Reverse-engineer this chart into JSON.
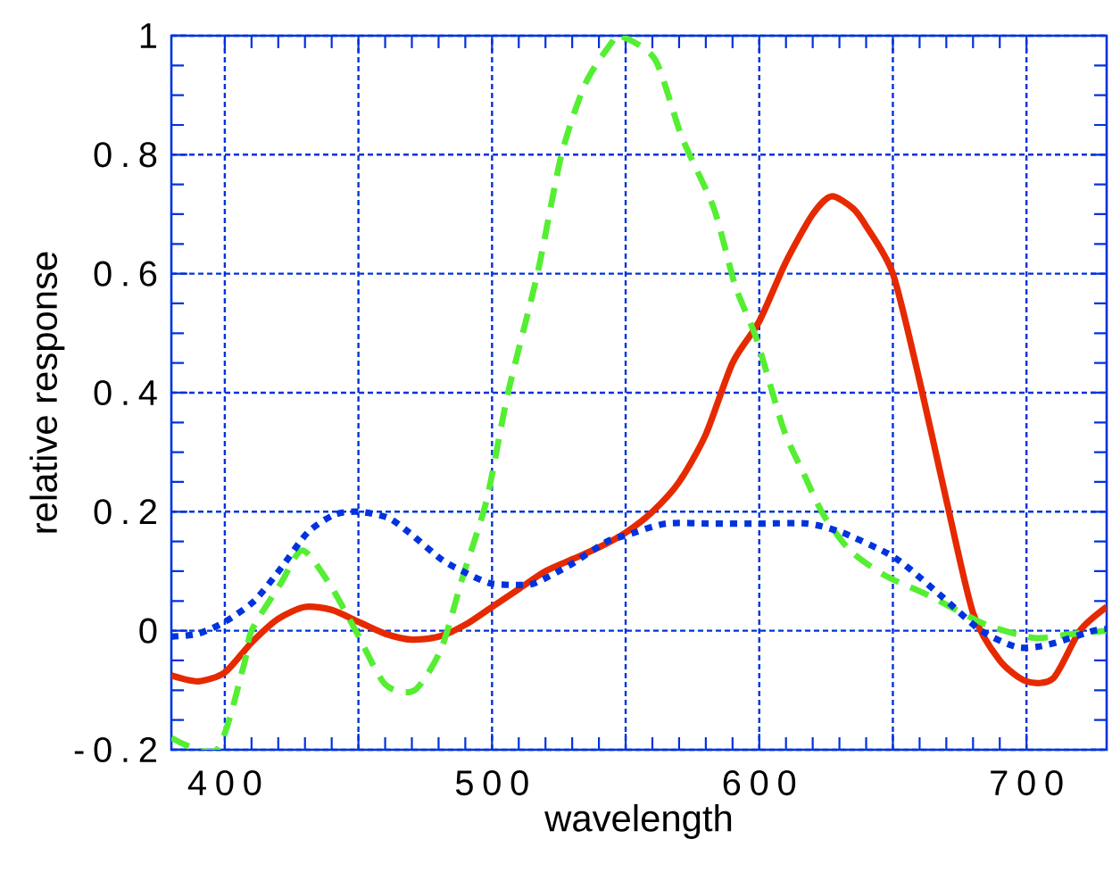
{
  "chart_data": {
    "type": "line",
    "xlabel": "wavelength",
    "ylabel": "relative response",
    "xlim": [
      380,
      730
    ],
    "ylim": [
      -0.2,
      1
    ],
    "xticks": [
      400,
      {
        "value": 450,
        "label": null
      },
      500,
      {
        "value": 550,
        "label": null
      },
      600,
      {
        "value": 650,
        "label": null
      },
      700
    ],
    "yticks": [
      -0.2,
      0,
      0.2,
      0.4,
      0.6,
      0.8,
      1
    ],
    "grid": true,
    "marker": "none",
    "series": [
      {
        "color": "#e62a00",
        "line_style": "solid",
        "x": [
          380,
          390,
          400,
          410,
          420,
          430,
          440,
          450,
          460,
          470,
          480,
          490,
          500,
          510,
          520,
          530,
          540,
          550,
          560,
          570,
          580,
          590,
          600,
          610,
          620,
          627,
          635,
          640,
          650,
          660,
          670,
          680,
          690,
          700,
          710,
          720,
          730
        ],
        "values": [
          -0.075,
          -0.085,
          -0.07,
          -0.02,
          0.02,
          0.04,
          0.035,
          0.015,
          -0.005,
          -0.015,
          -0.01,
          0.01,
          0.04,
          0.07,
          0.1,
          0.12,
          0.14,
          0.165,
          0.2,
          0.25,
          0.33,
          0.45,
          0.52,
          0.62,
          0.7,
          0.73,
          0.71,
          0.68,
          0.6,
          0.42,
          0.22,
          0.03,
          -0.05,
          -0.085,
          -0.08,
          0.0,
          0.04
        ]
      },
      {
        "color": "#55ee33",
        "line_style": "dashed",
        "x": [
          380,
          397,
          407,
          410,
          421,
          429,
          439,
          449,
          460,
          471,
          481,
          489,
          498,
          506,
          517,
          526,
          535,
          545,
          548,
          561,
          571,
          583,
          591,
          599,
          609,
          616,
          624,
          634,
          647,
          663,
          685,
          703,
          716,
          730
        ],
        "values": [
          -0.18,
          -0.2,
          -0.06,
          0.0,
          0.08,
          0.135,
          0.08,
          0.0,
          -0.09,
          -0.1,
          -0.03,
          0.09,
          0.22,
          0.4,
          0.6,
          0.8,
          0.92,
          0.99,
          1.0,
          0.96,
          0.83,
          0.71,
          0.58,
          0.49,
          0.34,
          0.27,
          0.195,
          0.135,
          0.093,
          0.06,
          0.01,
          -0.012,
          -0.006,
          0.0
        ]
      },
      {
        "color": "#0033dd",
        "line_style": "dotted",
        "x": [
          380,
          390,
          400,
          411,
          421,
          431,
          441,
          450,
          461,
          469,
          481,
          489,
          499,
          509,
          516,
          529,
          543,
          550,
          565,
          583,
          600,
          618,
          631,
          648,
          656,
          669,
          683,
          696,
          704,
          711,
          725,
          730
        ],
        "values": [
          -0.01,
          -0.005,
          0.015,
          0.05,
          0.105,
          0.165,
          0.195,
          0.2,
          0.19,
          0.165,
          0.12,
          0.1,
          0.08,
          0.077,
          0.08,
          0.11,
          0.15,
          0.16,
          0.18,
          0.18,
          0.18,
          0.18,
          0.165,
          0.13,
          0.105,
          0.055,
          0.0,
          -0.027,
          -0.027,
          -0.02,
          0.0,
          0.003
        ]
      }
    ]
  }
}
